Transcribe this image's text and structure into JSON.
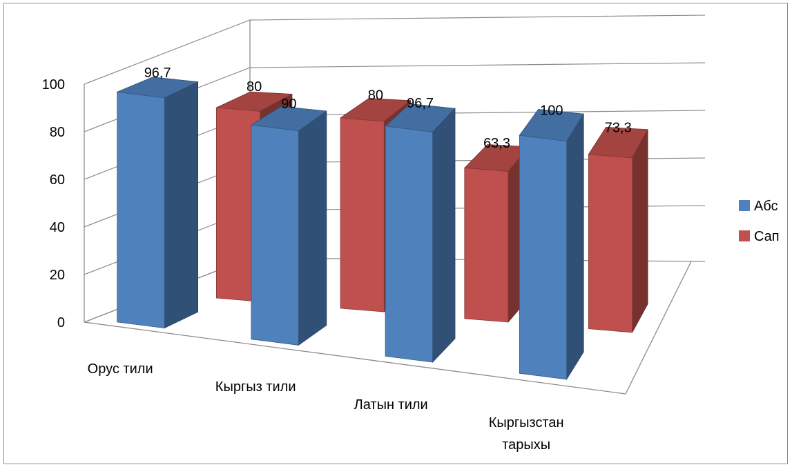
{
  "chart_data": {
    "type": "bar",
    "title": "",
    "xlabel": "",
    "ylabel": "",
    "categories": [
      "Орус тили",
      "Кыргыз тили",
      "Латын тили",
      "Кыргызстан тарыхы"
    ],
    "series": [
      {
        "name": "Абс",
        "values": [
          96.7,
          90,
          96.7,
          100
        ],
        "labels": [
          "96,7",
          "90",
          "96,7",
          "100"
        ],
        "color": "#4F81BD"
      },
      {
        "name": "Сап",
        "values": [
          80,
          80,
          63.3,
          73.3
        ],
        "labels": [
          "80",
          "80",
          "63,3",
          "73,3"
        ],
        "color": "#C0504D"
      }
    ],
    "ylim": [
      0,
      100
    ],
    "yticks": [
      "0",
      "20",
      "40",
      "60",
      "80",
      "100"
    ],
    "grid": true,
    "legend_position": "right",
    "style": "3d-clustered-column"
  }
}
